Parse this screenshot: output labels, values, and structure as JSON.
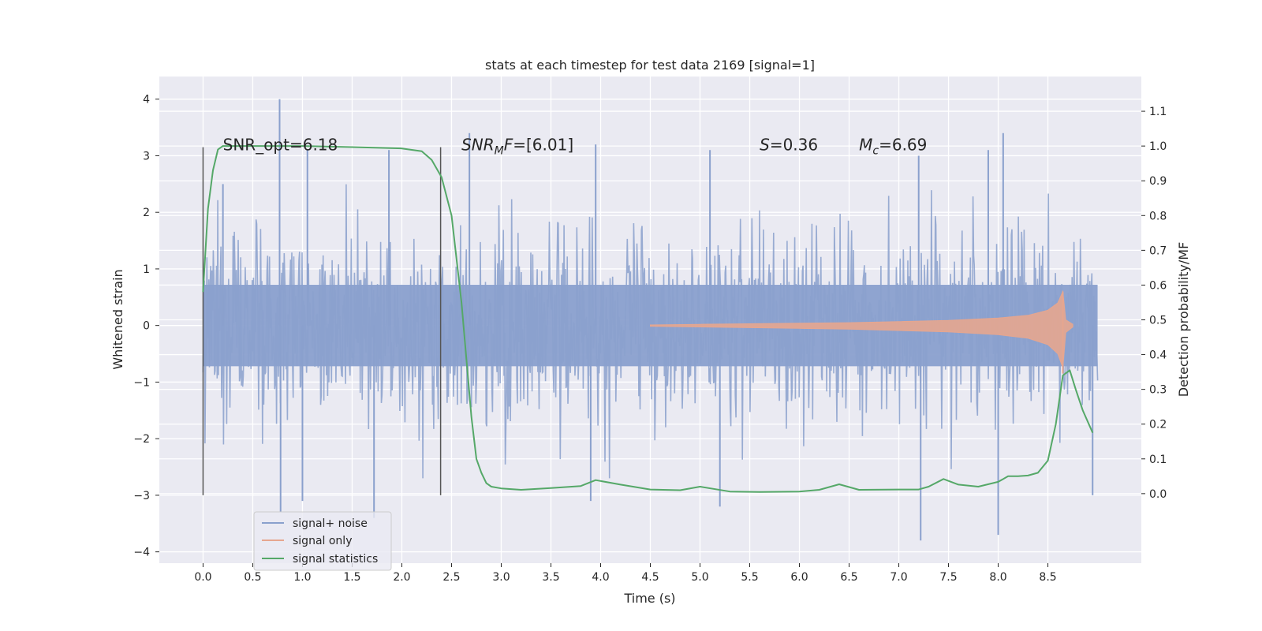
{
  "chart_data": {
    "type": "line",
    "title": "stats at each timestep for test data 2169 [signal=1]",
    "xlabel": "Time (s)",
    "ylabel": "Whitened strain",
    "y2label": "Detection probability/MF",
    "xlim": [
      -0.44,
      9.44
    ],
    "ylim": [
      -4.2,
      4.4
    ],
    "y2lim": [
      -0.2,
      1.2
    ],
    "xticks": [
      0.0,
      0.5,
      1.0,
      1.5,
      2.0,
      2.5,
      3.0,
      3.5,
      4.0,
      4.5,
      5.0,
      5.5,
      6.0,
      6.5,
      7.0,
      7.5,
      8.0,
      8.5
    ],
    "xtick_labels": [
      "0.0",
      "0.5",
      "1.0",
      "1.5",
      "2.0",
      "2.5",
      "3.0",
      "3.5",
      "4.0",
      "4.5",
      "5.0",
      "5.5",
      "6.0",
      "6.5",
      "7.0",
      "7.5",
      "8.0",
      "8.5"
    ],
    "yticks": [
      -4,
      -3,
      -2,
      -1,
      0,
      1,
      2,
      3,
      4
    ],
    "ytick_labels": [
      "−4",
      "−3",
      "−2",
      "−1",
      "0",
      "1",
      "2",
      "3",
      "4"
    ],
    "y2ticks": [
      0.0,
      0.1,
      0.2,
      0.3,
      0.4,
      0.5,
      0.6,
      0.7,
      0.8,
      0.9,
      1.0,
      1.1
    ],
    "y2tick_labels": [
      "0.0",
      "0.1",
      "0.2",
      "0.3",
      "0.4",
      "0.5",
      "0.6",
      "0.7",
      "0.8",
      "0.9",
      "1.0",
      "1.1"
    ],
    "grid": true,
    "legend_position": "lower-left",
    "annotations": [
      {
        "text": "SNR_opt=6.18",
        "x": 0.2
      },
      {
        "text": "SNRMF=[6.01]",
        "x": 2.6
      },
      {
        "text": "S=0.36",
        "x": 5.6
      },
      {
        "text": "Mc=6.69",
        "x": 6.6
      }
    ],
    "annotation_y": 3.1,
    "vlines": [
      0.0,
      2.39
    ],
    "vline_range": [
      -3.0,
      3.15
    ],
    "series": [
      {
        "name": "signal+ noise",
        "axis": "left",
        "color": "#8aa0cd",
        "note": "dense whitened noise spanning roughly -2 to +2 with spikes to +4 / -3.8 over 0 to 9 s",
        "envelope_x": [
          0.0,
          9.0
        ],
        "envelope": [
          -1.8,
          1.8
        ],
        "spikes": [
          {
            "x": 0.77,
            "y": 4.0
          },
          {
            "x": 0.2,
            "y": 2.5
          },
          {
            "x": 1.05,
            "y": 3.1
          },
          {
            "x": 1.87,
            "y": 3.1
          },
          {
            "x": 2.68,
            "y": 3.4
          },
          {
            "x": 3.95,
            "y": 3.2
          },
          {
            "x": 5.1,
            "y": 3.1
          },
          {
            "x": 7.2,
            "y": 3.0
          },
          {
            "x": 7.9,
            "y": 3.1
          },
          {
            "x": 8.05,
            "y": 3.4
          },
          {
            "x": 0.78,
            "y": -3.3
          },
          {
            "x": 1.0,
            "y": -3.1
          },
          {
            "x": 1.72,
            "y": -3.4
          },
          {
            "x": 5.2,
            "y": -3.2
          },
          {
            "x": 7.22,
            "y": -3.8
          },
          {
            "x": 8.0,
            "y": -3.7
          },
          {
            "x": 8.95,
            "y": -3.0
          },
          {
            "x": 3.9,
            "y": -3.1
          }
        ]
      },
      {
        "name": "signal only",
        "axis": "left",
        "color": "#e6a68f",
        "note": "chirp with amplitude growing from 0 at 4.5 s to about 0.6 at merger 8.65 s, then ringdown",
        "x": [
          4.5,
          5.0,
          5.5,
          6.0,
          6.5,
          7.0,
          7.5,
          8.0,
          8.3,
          8.5,
          8.6,
          8.65,
          8.68,
          8.75
        ],
        "amplitude": [
          0.01,
          0.02,
          0.03,
          0.04,
          0.05,
          0.07,
          0.09,
          0.13,
          0.18,
          0.27,
          0.4,
          0.6,
          0.1,
          0.02
        ]
      },
      {
        "name": "signal statistics",
        "axis": "right",
        "color": "#55a868",
        "x": [
          0.0,
          0.05,
          0.1,
          0.15,
          0.2,
          0.3,
          0.5,
          1.0,
          1.5,
          2.0,
          2.2,
          2.3,
          2.4,
          2.5,
          2.6,
          2.7,
          2.75,
          2.8,
          2.85,
          2.9,
          3.0,
          3.2,
          3.5,
          3.8,
          3.95,
          4.2,
          4.5,
          4.8,
          5.0,
          5.3,
          5.6,
          6.0,
          6.2,
          6.4,
          6.6,
          7.0,
          7.2,
          7.3,
          7.45,
          7.6,
          7.8,
          8.0,
          8.1,
          8.2,
          8.3,
          8.4,
          8.5,
          8.58,
          8.65,
          8.72,
          8.78,
          8.85,
          8.95
        ],
        "values": [
          0.58,
          0.82,
          0.93,
          0.99,
          1.0,
          1.0,
          1.0,
          1.0,
          0.997,
          0.993,
          0.985,
          0.96,
          0.91,
          0.8,
          0.55,
          0.22,
          0.1,
          0.06,
          0.03,
          0.02,
          0.015,
          0.011,
          0.016,
          0.022,
          0.039,
          0.026,
          0.012,
          0.01,
          0.02,
          0.006,
          0.005,
          0.006,
          0.011,
          0.027,
          0.011,
          0.012,
          0.012,
          0.02,
          0.042,
          0.026,
          0.02,
          0.034,
          0.05,
          0.05,
          0.052,
          0.06,
          0.095,
          0.2,
          0.34,
          0.355,
          0.3,
          0.24,
          0.175
        ]
      }
    ]
  }
}
